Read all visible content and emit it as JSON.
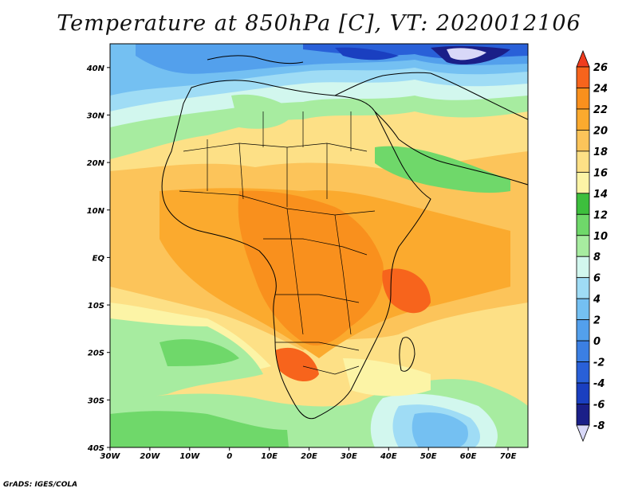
{
  "title": "Temperature at 850hPa [C], VT: 2020012106",
  "credit": "GrADS: IGES/COLA",
  "map": {
    "lon_range": [
      -30,
      75
    ],
    "lat_range": [
      -40,
      45
    ],
    "x_ticks": [
      "30W",
      "20W",
      "10W",
      "0",
      "10E",
      "20E",
      "30E",
      "40E",
      "50E",
      "60E",
      "70E"
    ],
    "y_ticks": [
      "40N",
      "30N",
      "20N",
      "10N",
      "EQ",
      "10S",
      "20S",
      "30S",
      "40S"
    ]
  },
  "colorbar": {
    "levels": [
      "26",
      "24",
      "22",
      "20",
      "18",
      "16",
      "14",
      "12",
      "10",
      "8",
      "6",
      "4",
      "2",
      "0",
      "-2",
      "-4",
      "-6",
      "-8"
    ],
    "colors": [
      "#f03c1e",
      "#f7641c",
      "#f9901d",
      "#fbaa2e",
      "#fcc45a",
      "#fde086",
      "#fcf4a6",
      "#3dbf3d",
      "#6fd86a",
      "#a7eca0",
      "#d2f7ee",
      "#9fdcf5",
      "#74c0f2",
      "#53a0ec",
      "#3b7fe3",
      "#2960d8",
      "#1a3fc0",
      "#1a1f88",
      "#d8d8f8"
    ]
  }
}
